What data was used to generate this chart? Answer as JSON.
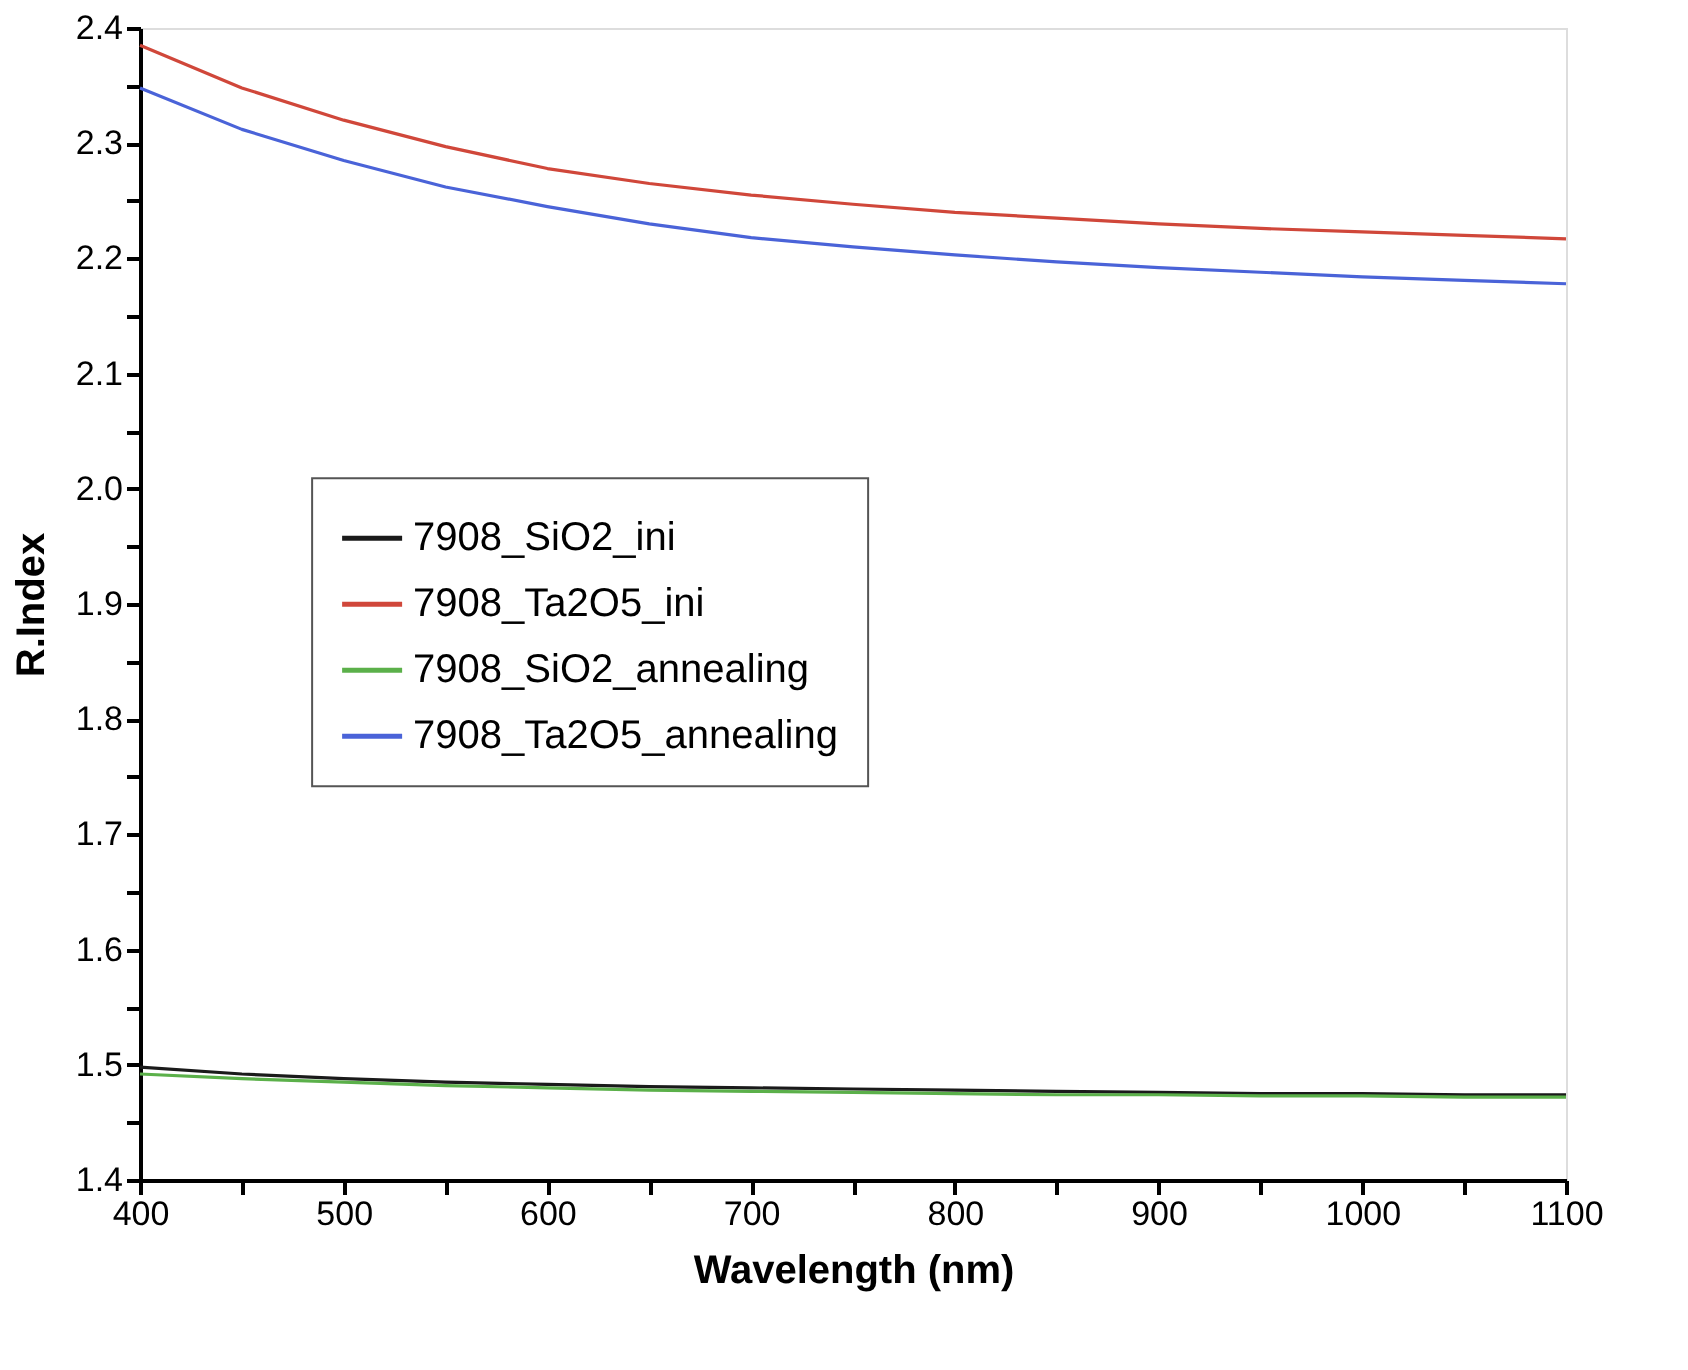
{
  "chart_data": {
    "type": "line",
    "xlabel": "Wavelength (nm)",
    "ylabel": "R.Index",
    "x": [
      400,
      450,
      500,
      550,
      600,
      650,
      700,
      750,
      800,
      850,
      900,
      950,
      1000,
      1050,
      1100
    ],
    "series": [
      {
        "name": "7908_SiO2_ini",
        "color": "#1a1a1a",
        "values": [
          1.498,
          1.492,
          1.488,
          1.485,
          1.483,
          1.481,
          1.48,
          1.479,
          1.478,
          1.477,
          1.476,
          1.475,
          1.475,
          1.474,
          1.474
        ]
      },
      {
        "name": "7908_Ta2O5_ini",
        "color": "#d0473a",
        "values": [
          2.385,
          2.348,
          2.32,
          2.297,
          2.278,
          2.265,
          2.255,
          2.247,
          2.24,
          2.235,
          2.23,
          2.226,
          2.223,
          2.22,
          2.217
        ]
      },
      {
        "name": "7908_SiO2_annealing",
        "color": "#5bb04a",
        "values": [
          1.492,
          1.488,
          1.485,
          1.482,
          1.48,
          1.478,
          1.477,
          1.476,
          1.475,
          1.474,
          1.474,
          1.473,
          1.473,
          1.472,
          1.472
        ]
      },
      {
        "name": "7908_Ta2O5_annealing",
        "color": "#4a63d8",
        "values": [
          2.348,
          2.312,
          2.285,
          2.262,
          2.245,
          2.23,
          2.218,
          2.21,
          2.203,
          2.197,
          2.192,
          2.188,
          2.184,
          2.181,
          2.178
        ]
      }
    ],
    "xlim": [
      400,
      1100
    ],
    "ylim": [
      1.4,
      2.4
    ],
    "xticks": [
      400,
      {
        "value": 450,
        "label": null
      },
      500,
      {
        "value": 550,
        "label": null
      },
      600,
      {
        "value": 650,
        "label": null
      },
      700,
      {
        "value": 750,
        "label": null
      },
      800,
      {
        "value": 850,
        "label": null
      },
      900,
      {
        "value": 950,
        "label": null
      },
      1000,
      {
        "value": 1050,
        "label": null
      },
      1100
    ],
    "yticks": [
      {
        "value": 1.4,
        "label": "1.4"
      },
      {
        "value": 1.45,
        "label": null
      },
      {
        "value": 1.5,
        "label": "1.5"
      },
      {
        "value": 1.55,
        "label": null
      },
      {
        "value": 1.6,
        "label": "1.6"
      },
      {
        "value": 1.65,
        "label": null
      },
      {
        "value": 1.7,
        "label": "1.7"
      },
      {
        "value": 1.75,
        "label": null
      },
      {
        "value": 1.8,
        "label": "1.8"
      },
      {
        "value": 1.85,
        "label": null
      },
      {
        "value": 1.9,
        "label": "1.9"
      },
      {
        "value": 1.95,
        "label": null
      },
      {
        "value": 2.0,
        "label": "2.0"
      },
      {
        "value": 2.05,
        "label": null
      },
      {
        "value": 2.1,
        "label": "2.1"
      },
      {
        "value": 2.15,
        "label": null
      },
      {
        "value": 2.2,
        "label": "2.2"
      },
      {
        "value": 2.25,
        "label": null
      },
      {
        "value": 2.3,
        "label": "2.3"
      },
      {
        "value": 2.35,
        "label": null
      },
      {
        "value": 2.4,
        "label": "2.4"
      }
    ],
    "legend": "left",
    "grid": false,
    "marker": "none",
    "line_style": "solid"
  }
}
